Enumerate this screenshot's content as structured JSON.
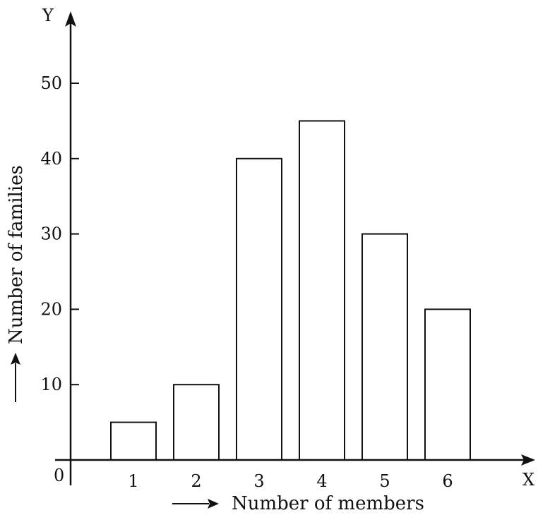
{
  "chart_data": {
    "type": "bar",
    "categories": [
      "1",
      "2",
      "3",
      "4",
      "5",
      "6"
    ],
    "values": [
      5,
      10,
      40,
      45,
      30,
      20
    ],
    "y_ticks": [
      10,
      20,
      30,
      40,
      50
    ],
    "ylim": [
      0,
      55
    ],
    "xlabel": "Number of members",
    "ylabel": "Number of families",
    "origin_label": "0",
    "x_axis_letter": "X",
    "y_axis_letter": "Y",
    "grid": false,
    "legend": "none",
    "colors": {
      "bar_fill": "#ffffff",
      "bar_stroke": "#111111",
      "axis": "#111111"
    }
  }
}
